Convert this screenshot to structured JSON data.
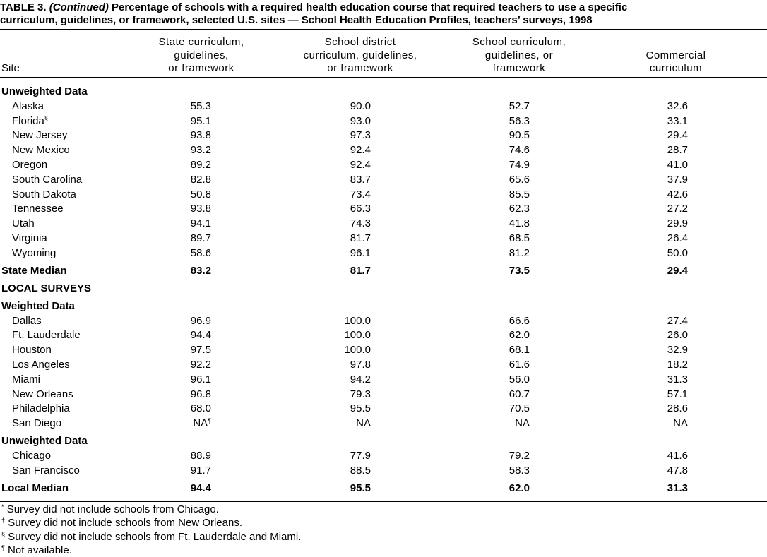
{
  "title": {
    "label": "TABLE 3.",
    "continued": "(Continued)",
    "lines": [
      "Percentage of schools with a required health education course that required teachers to use a specific",
      "curriculum, guidelines, or framework, selected U.S. sites — School Health Education Profiles, teachers’ surveys, 1998"
    ]
  },
  "columns": [
    [
      "Site"
    ],
    [
      "State curriculum,",
      "guidelines,",
      "or framework"
    ],
    [
      "School district",
      "curriculum, guidelines,",
      "or framework"
    ],
    [
      "School curriculum,",
      "guidelines, or",
      "framework"
    ],
    [
      "Commercial",
      "curriculum"
    ]
  ],
  "body": [
    {
      "heading": "Unweighted Data"
    },
    {
      "site": "Alaska",
      "values": [
        "55.3",
        "90.0",
        "52.7",
        "32.6"
      ]
    },
    {
      "site": "Florida",
      "mark": "§",
      "values": [
        "95.1",
        "93.0",
        "56.3",
        "33.1"
      ]
    },
    {
      "site": "New Jersey",
      "values": [
        "93.8",
        "97.3",
        "90.5",
        "29.4"
      ]
    },
    {
      "site": "New Mexico",
      "values": [
        "93.2",
        "92.4",
        "74.6",
        "28.7"
      ]
    },
    {
      "site": "Oregon",
      "values": [
        "89.2",
        "92.4",
        "74.9",
        "41.0"
      ]
    },
    {
      "site": "South Carolina",
      "values": [
        "82.8",
        "83.7",
        "65.6",
        "37.9"
      ]
    },
    {
      "site": "South Dakota",
      "values": [
        "50.8",
        "73.4",
        "85.5",
        "42.6"
      ]
    },
    {
      "site": "Tennessee",
      "values": [
        "93.8",
        "66.3",
        "62.3",
        "27.2"
      ]
    },
    {
      "site": "Utah",
      "values": [
        "94.1",
        "74.3",
        "41.8",
        "29.9"
      ]
    },
    {
      "site": "Virginia",
      "values": [
        "89.7",
        "81.7",
        "68.5",
        "26.4"
      ]
    },
    {
      "site": "Wyoming",
      "values": [
        "58.6",
        "96.1",
        "81.2",
        "50.0"
      ]
    },
    {
      "median": "State Median",
      "values": [
        "83.2",
        "81.7",
        "73.5",
        "29.4"
      ]
    },
    {
      "heading": "LOCAL SURVEYS"
    },
    {
      "heading": "Weighted Data"
    },
    {
      "site": "Dallas",
      "values": [
        "96.9",
        "100.0",
        "66.6",
        "27.4"
      ]
    },
    {
      "site": "Ft. Lauderdale",
      "values": [
        "94.4",
        "100.0",
        "62.0",
        "26.0"
      ]
    },
    {
      "site": "Houston",
      "values": [
        "97.5",
        "100.0",
        "68.1",
        "32.9"
      ]
    },
    {
      "site": "Los Angeles",
      "values": [
        "92.2",
        "97.8",
        "61.6",
        "18.2"
      ]
    },
    {
      "site": "Miami",
      "values": [
        "96.1",
        "94.2",
        "56.0",
        "31.3"
      ]
    },
    {
      "site": "New Orleans",
      "values": [
        "96.8",
        "79.3",
        "60.7",
        "57.1"
      ]
    },
    {
      "site": "Philadelphia",
      "values": [
        "68.0",
        "95.5",
        "70.5",
        "28.6"
      ]
    },
    {
      "site": "San Diego",
      "values": [
        {
          "text": "NA",
          "mark": "¶"
        },
        "NA",
        "NA",
        "NA"
      ]
    },
    {
      "heading": "Unweighted Data"
    },
    {
      "site": "Chicago",
      "values": [
        "88.9",
        "77.9",
        "79.2",
        "41.6"
      ]
    },
    {
      "site": "San Francisco",
      "values": [
        "91.7",
        "88.5",
        "58.3",
        "47.8"
      ]
    },
    {
      "median": "Local Median",
      "values": [
        "94.4",
        "95.5",
        "62.0",
        "31.3"
      ]
    }
  ],
  "footnotes": [
    {
      "mark": "*",
      "text": "Survey did not include schools from Chicago."
    },
    {
      "mark": "†",
      "text": "Survey did not include schools from New Orleans."
    },
    {
      "mark": "§",
      "text": "Survey did not include schools from Ft. Lauderdale and Miami."
    },
    {
      "mark": "¶",
      "text": "Not available."
    }
  ]
}
